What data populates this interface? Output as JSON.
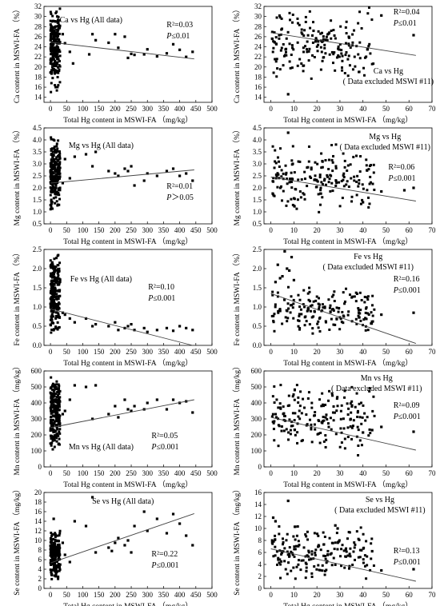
{
  "chart_data": [
    {
      "id": "ca-all",
      "type": "scatter",
      "title_lines": [
        "Ca vs Hg (All data)"
      ],
      "ylabel": "Ca content in MSWI-FA （%）",
      "xlabel": "Total Hg content in MSWI-FA （mg/kg）",
      "r2_label": "R²=0.03",
      "p_label": "P≤0.01",
      "xlim": [
        -20,
        500
      ],
      "ylim": [
        13,
        32
      ],
      "xticks": [
        0,
        50,
        100,
        150,
        200,
        250,
        300,
        350,
        400,
        450,
        500
      ],
      "yticks": [
        14,
        16,
        18,
        20,
        22,
        24,
        26,
        28,
        30,
        32
      ],
      "trend": [
        [
          0,
          24.9
        ],
        [
          445,
          21.6
        ]
      ],
      "cluster": {
        "x": [
          0,
          30
        ],
        "y": [
          14.5,
          32
        ],
        "n": 230,
        "seed": 11
      },
      "points": [
        [
          38,
          26.5
        ],
        [
          45,
          24.7
        ],
        [
          60,
          23
        ],
        [
          70,
          20.7
        ],
        [
          120,
          22.5
        ],
        [
          130,
          26.5
        ],
        [
          140,
          25.3
        ],
        [
          180,
          24.8
        ],
        [
          200,
          26.5
        ],
        [
          210,
          23.8
        ],
        [
          230,
          26
        ],
        [
          240,
          21.8
        ],
        [
          250,
          22.6
        ],
        [
          260,
          22.4
        ],
        [
          290,
          22.5
        ],
        [
          300,
          23.5
        ],
        [
          330,
          22.1
        ],
        [
          360,
          22.7
        ],
        [
          380,
          24.5
        ],
        [
          400,
          23.4
        ],
        [
          420,
          22
        ],
        [
          440,
          23
        ]
      ]
    },
    {
      "id": "ca-excl",
      "type": "scatter",
      "title_lines": [
        "Ca vs Hg",
        "( Data excluded MSWI #11)"
      ],
      "ylabel": "Ca content in MSWI-FA （%）",
      "xlabel": "Total Hg content in MSWI-FA （mg/kg）",
      "r2_label": "R²=0.04",
      "p_label": "P≤0.01",
      "xlim": [
        -3,
        70
      ],
      "ylim": [
        13,
        32
      ],
      "xticks": [
        0,
        10,
        20,
        30,
        40,
        50,
        60,
        70
      ],
      "yticks": [
        14,
        16,
        18,
        20,
        22,
        24,
        26,
        28,
        30,
        32
      ],
      "trend": [
        [
          0,
          26.8
        ],
        [
          63,
          22.3
        ]
      ],
      "cluster": {
        "x": [
          0.5,
          45
        ],
        "y": [
          17,
          32
        ],
        "n": 190,
        "seed": 21
      },
      "points": [
        [
          7.5,
          14.6
        ],
        [
          48,
          30.2
        ],
        [
          62,
          26.3
        ],
        [
          34,
          25.8
        ],
        [
          42,
          23.5
        ]
      ]
    },
    {
      "id": "mg-all",
      "type": "scatter",
      "title_lines": [
        "Mg vs Hg (All data)"
      ],
      "ylabel": "Mg content in MSWI-FA （%）",
      "xlabel": "Total Hg content in MSWI-FA （mg/kg）",
      "r2_label": "R²=0.01",
      "p_label": "P＞0.05",
      "xlim": [
        -20,
        500
      ],
      "ylim": [
        0.5,
        4.5
      ],
      "xticks": [
        0,
        50,
        100,
        150,
        200,
        250,
        300,
        350,
        400,
        450,
        500
      ],
      "yticks": [
        0.5,
        1.0,
        1.5,
        2.0,
        2.5,
        3.0,
        3.5,
        4.0,
        4.5
      ],
      "trend": [
        [
          0,
          2.2
        ],
        [
          445,
          2.75
        ]
      ],
      "cluster": {
        "x": [
          0,
          30
        ],
        "y": [
          0.9,
          4.3
        ],
        "n": 230,
        "seed": 31
      },
      "points": [
        [
          38,
          2.2
        ],
        [
          45,
          3.2
        ],
        [
          60,
          2.4
        ],
        [
          75,
          3.3
        ],
        [
          110,
          3.4
        ],
        [
          130,
          2.9
        ],
        [
          140,
          3.5
        ],
        [
          180,
          2.7
        ],
        [
          200,
          2.6
        ],
        [
          210,
          2.5
        ],
        [
          230,
          2.8
        ],
        [
          240,
          2.7
        ],
        [
          250,
          2.9
        ],
        [
          260,
          2.1
        ],
        [
          290,
          2.3
        ],
        [
          300,
          2.6
        ],
        [
          330,
          2.5
        ],
        [
          360,
          2.7
        ],
        [
          380,
          2.8
        ],
        [
          400,
          2.5
        ],
        [
          420,
          2.6
        ],
        [
          440,
          2.3
        ]
      ]
    },
    {
      "id": "mg-excl",
      "type": "scatter",
      "title_lines": [
        "Mg vs Hg",
        "( Data excluded MSWI #11)"
      ],
      "ylabel": "Mg content in MSWI-FA （%）",
      "xlabel": "Total Hg content in MSWI-FA （mg/kg）",
      "r2_label": "R²=0.06",
      "p_label": "P≤0.001",
      "xlim": [
        -3,
        70
      ],
      "ylim": [
        0.5,
        4.5
      ],
      "xticks": [
        0,
        10,
        20,
        30,
        40,
        50,
        60,
        70
      ],
      "yticks": [
        0.5,
        1.0,
        1.5,
        2.0,
        2.5,
        3.0,
        3.5,
        4.0,
        4.5
      ],
      "trend": [
        [
          0,
          2.45
        ],
        [
          63,
          1.45
        ]
      ],
      "cluster": {
        "x": [
          0.5,
          45
        ],
        "y": [
          0.9,
          3.9
        ],
        "n": 190,
        "seed": 41
      },
      "points": [
        [
          7.5,
          4.3
        ],
        [
          48,
          1.85
        ],
        [
          62,
          2.0
        ],
        [
          40,
          1.4
        ],
        [
          58,
          1.9
        ]
      ]
    },
    {
      "id": "fe-all",
      "type": "scatter",
      "title_lines": [
        "Fe vs Hg (All data)"
      ],
      "ylabel": "Fe content in MSWI-FA （%）",
      "xlabel": "Total Hg content in MSWI-FA （mg/kg）",
      "r2_label": "R²=0.10",
      "p_label": "P≤0.001",
      "xlim": [
        -20,
        500
      ],
      "ylim": [
        0,
        2.5
      ],
      "xticks": [
        0,
        50,
        100,
        150,
        200,
        250,
        300,
        350,
        400,
        450,
        500
      ],
      "yticks": [
        0.0,
        0.5,
        1.0,
        1.5,
        2.0,
        2.5
      ],
      "trend": [
        [
          0,
          0.95
        ],
        [
          440,
          0.0
        ]
      ],
      "cluster": {
        "x": [
          0,
          30
        ],
        "y": [
          0.2,
          2.45
        ],
        "n": 230,
        "seed": 51
      },
      "points": [
        [
          38,
          0.85
        ],
        [
          45,
          0.8
        ],
        [
          60,
          0.7
        ],
        [
          75,
          0.6
        ],
        [
          110,
          0.7
        ],
        [
          130,
          0.5
        ],
        [
          140,
          0.55
        ],
        [
          180,
          0.5
        ],
        [
          200,
          0.6
        ],
        [
          210,
          0.4
        ],
        [
          230,
          0.45
        ],
        [
          240,
          0.5
        ],
        [
          250,
          0.55
        ],
        [
          260,
          0.4
        ],
        [
          290,
          0.45
        ],
        [
          300,
          0.35
        ],
        [
          330,
          0.4
        ],
        [
          360,
          0.45
        ],
        [
          380,
          0.38
        ],
        [
          400,
          0.5
        ],
        [
          420,
          0.45
        ],
        [
          440,
          0.4
        ]
      ]
    },
    {
      "id": "fe-excl",
      "type": "scatter",
      "title_lines": [
        "Fe vs Hg",
        "( Data excluded MSWI #11)"
      ],
      "ylabel": "Fe content in MSWI-FA （%）",
      "xlabel": "Total Hg content in MSWI-FA （mg/kg）",
      "r2_label": "R²=0.16",
      "p_label": "P≤0.001",
      "xlim": [
        -3,
        70
      ],
      "ylim": [
        0,
        2.5
      ],
      "xticks": [
        0,
        10,
        20,
        30,
        40,
        50,
        60,
        70
      ],
      "yticks": [
        0.0,
        0.5,
        1.0,
        1.5,
        2.0,
        2.5
      ],
      "trend": [
        [
          0,
          1.35
        ],
        [
          63,
          0.05
        ]
      ],
      "cluster": {
        "x": [
          0.5,
          45
        ],
        "y": [
          0.2,
          1.6
        ],
        "n": 180,
        "seed": 61
      },
      "points": [
        [
          6,
          2.45
        ],
        [
          7,
          2.0
        ],
        [
          8,
          1.95
        ],
        [
          5,
          1.8
        ],
        [
          4,
          1.75
        ],
        [
          9,
          2.3
        ],
        [
          10,
          1.7
        ],
        [
          3,
          2.1
        ],
        [
          2,
          1.65
        ],
        [
          48,
          0.8
        ],
        [
          62,
          0.85
        ]
      ]
    },
    {
      "id": "mn-all",
      "type": "scatter",
      "title_lines": [
        "Mn vs Hg (All data)"
      ],
      "ylabel": "Mn content in MSWI-FA （mg/kg）",
      "xlabel": "Total Hg content in MSWI-FA （mg/kg）",
      "r2_label": "R²=0.05",
      "p_label": "P≤0.001",
      "xlim": [
        -20,
        500
      ],
      "ylim": [
        0,
        600
      ],
      "xticks": [
        0,
        50,
        100,
        150,
        200,
        250,
        300,
        350,
        400,
        450,
        500
      ],
      "yticks": [
        0,
        100,
        200,
        300,
        400,
        500,
        600
      ],
      "trend": [
        [
          0,
          245
        ],
        [
          445,
          420
        ]
      ],
      "cluster": {
        "x": [
          0,
          30
        ],
        "y": [
          90,
          580
        ],
        "n": 230,
        "seed": 71
      },
      "points": [
        [
          38,
          330
        ],
        [
          45,
          350
        ],
        [
          60,
          420
        ],
        [
          75,
          510
        ],
        [
          110,
          500
        ],
        [
          130,
          300
        ],
        [
          140,
          510
        ],
        [
          180,
          330
        ],
        [
          200,
          380
        ],
        [
          210,
          310
        ],
        [
          230,
          420
        ],
        [
          240,
          360
        ],
        [
          250,
          350
        ],
        [
          260,
          380
        ],
        [
          290,
          360
        ],
        [
          300,
          400
        ],
        [
          330,
          420
        ],
        [
          360,
          360
        ],
        [
          380,
          420
        ],
        [
          400,
          400
        ],
        [
          420,
          410
        ],
        [
          440,
          340
        ]
      ]
    },
    {
      "id": "mn-excl",
      "type": "scatter",
      "title_lines": [
        "Mn vs Hg",
        "( Data excluded MSWI #11)"
      ],
      "ylabel": "Mn content in MSWI-FA （mg/kg）",
      "xlabel": "Total Hg content in MSWI-FA （mg/kg）",
      "r2_label": "R²=0.09",
      "p_label": "P≤0.001",
      "xlim": [
        -3,
        70
      ],
      "ylim": [
        0,
        600
      ],
      "xticks": [
        0,
        10,
        20,
        30,
        40,
        50,
        60,
        70
      ],
      "yticks": [
        0,
        100,
        200,
        300,
        400,
        500,
        600
      ],
      "trend": [
        [
          0,
          310
        ],
        [
          63,
          105
        ]
      ],
      "cluster": {
        "x": [
          0.5,
          45
        ],
        "y": [
          70,
          560
        ],
        "n": 190,
        "seed": 81
      },
      "points": [
        [
          48,
          250
        ],
        [
          62,
          220
        ],
        [
          40,
          215
        ],
        [
          44,
          230
        ]
      ]
    },
    {
      "id": "se-all",
      "type": "scatter",
      "title_lines": [
        "Se vs Hg (All data)"
      ],
      "ylabel": "Se content in MSWI-FA （mg/kg）",
      "xlabel": "Total Hg content in MSWI-FA （mg/kg）",
      "r2_label": "R²=0.22",
      "p_label": "P≤0.001",
      "xlim": [
        -20,
        500
      ],
      "ylim": [
        0,
        20
      ],
      "xticks": [
        0,
        50,
        100,
        150,
        200,
        250,
        300,
        350,
        400,
        450,
        500
      ],
      "yticks": [
        0,
        2,
        4,
        6,
        8,
        10,
        12,
        14,
        16,
        18,
        20
      ],
      "trend": [
        [
          0,
          5.3
        ],
        [
          445,
          15.6
        ]
      ],
      "cluster": {
        "x": [
          0,
          30
        ],
        "y": [
          1.5,
          12.5
        ],
        "n": 230,
        "seed": 91
      },
      "points": [
        [
          10,
          14.5
        ],
        [
          38,
          9.5
        ],
        [
          45,
          7.0
        ],
        [
          60,
          5.5
        ],
        [
          75,
          14.0
        ],
        [
          110,
          13.0
        ],
        [
          130,
          19.0
        ],
        [
          140,
          7.5
        ],
        [
          180,
          8.5
        ],
        [
          190,
          7.8
        ],
        [
          200,
          9.5
        ],
        [
          210,
          10.5
        ],
        [
          230,
          9.0
        ],
        [
          240,
          10.0
        ],
        [
          250,
          7.5
        ],
        [
          260,
          13.0
        ],
        [
          290,
          16.0
        ],
        [
          300,
          12.0
        ],
        [
          330,
          14.5
        ],
        [
          360,
          11.5
        ],
        [
          380,
          15.5
        ],
        [
          400,
          13.5
        ],
        [
          420,
          11.0
        ],
        [
          440,
          9.0
        ]
      ]
    },
    {
      "id": "se-excl",
      "type": "scatter",
      "title_lines": [
        "Se vs Hg",
        "( Data excluded MSWI #11)"
      ],
      "ylabel": "Se content in MSWI-FA （mg/kg）",
      "xlabel": "Total Hg content in MSWI-FA （mg/kg）",
      "r2_label": "R²=0.13",
      "p_label": "P≤0.001",
      "xlim": [
        -3,
        70
      ],
      "ylim": [
        0,
        16
      ],
      "xticks": [
        0,
        10,
        20,
        30,
        40,
        50,
        60,
        70
      ],
      "yticks": [
        0,
        2,
        4,
        6,
        8,
        10,
        12,
        14,
        16
      ],
      "trend": [
        [
          0,
          6.6
        ],
        [
          63,
          1.2
        ]
      ],
      "cluster": {
        "x": [
          0.5,
          45
        ],
        "y": [
          1.2,
          11
        ],
        "n": 190,
        "seed": 101
      },
      "points": [
        [
          1,
          11.8
        ],
        [
          2,
          11.2
        ],
        [
          7.5,
          14.6
        ],
        [
          28,
          10.5
        ],
        [
          29,
          10.0
        ],
        [
          48,
          3.0
        ],
        [
          62,
          3.2
        ],
        [
          44,
          6.2
        ]
      ]
    }
  ]
}
